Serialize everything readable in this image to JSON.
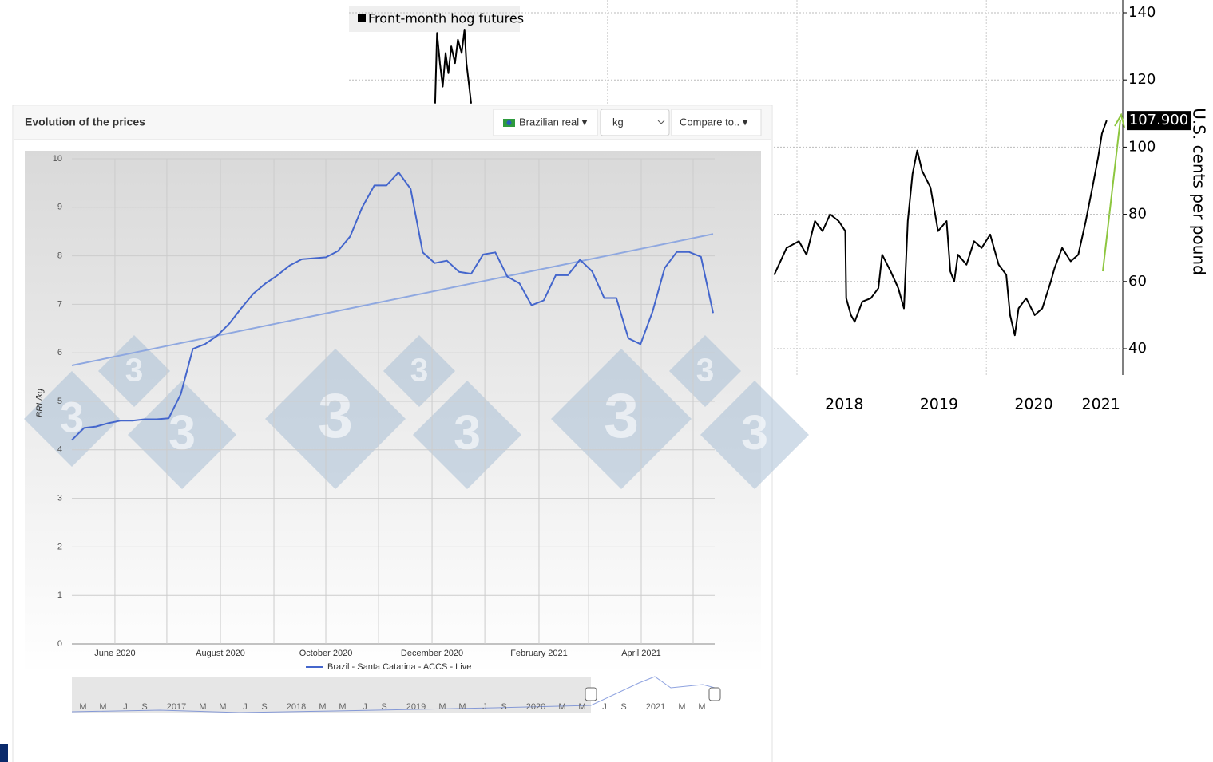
{
  "chart_data": [
    {
      "type": "line",
      "legend": "Front-month hog futures",
      "y_label": "U.S. cents per pound",
      "last_label": "107.900",
      "xlim": [
        2013.27,
        2021.44
      ],
      "ylim": [
        32.16,
        143.8
      ],
      "yticks": [
        40,
        60,
        80,
        100,
        120,
        140
      ],
      "xticks": [
        {
          "value": 2018.5,
          "label": "2018"
        },
        {
          "value": 2019.5,
          "label": "2019"
        },
        {
          "value": 2020.5,
          "label": "2020"
        },
        {
          "value": 2021.21,
          "label": "2021"
        }
      ],
      "xgrid": [
        2016,
        2018,
        2020
      ],
      "grid": true,
      "series": [
        {
          "name": "Front-month hog futures",
          "color": "#000000",
          "x": [
            2014.18,
            2014.2,
            2014.23,
            2014.26,
            2014.29,
            2014.32,
            2014.35,
            2014.39,
            2014.42,
            2014.46,
            2014.49,
            2014.51,
            2014.54,
            2014.56,
            2016.0,
            2017.76,
            2017.89,
            2018.02,
            2018.1,
            2018.19,
            2018.27,
            2018.35,
            2018.44,
            2018.51,
            2018.52,
            2018.57,
            2018.61,
            2018.69,
            2018.78,
            2018.86,
            2018.9,
            2018.99,
            2019.07,
            2019.13,
            2019.17,
            2019.22,
            2019.27,
            2019.32,
            2019.41,
            2019.49,
            2019.58,
            2019.62,
            2019.66,
            2019.7,
            2019.79,
            2019.87,
            2019.95,
            2020.04,
            2020.13,
            2020.21,
            2020.25,
            2020.3,
            2020.34,
            2020.42,
            2020.51,
            2020.59,
            2020.68,
            2020.72,
            2020.8,
            2020.89,
            2020.97,
            2021.05,
            2021.12,
            2021.18,
            2021.22,
            2021.27
          ],
          "values": [
            113,
            134,
            125,
            118,
            128,
            122,
            130,
            125,
            132,
            128,
            135,
            125,
            118,
            113,
            null,
            62,
            70,
            72,
            68,
            78,
            75,
            80,
            78,
            75,
            55,
            50,
            48,
            54,
            55,
            58,
            68,
            63,
            58,
            52,
            78,
            92,
            99,
            93,
            88,
            75,
            78,
            63,
            60,
            68,
            65,
            72,
            70,
            74,
            65,
            62,
            50,
            44,
            52,
            55,
            50,
            52,
            60,
            64,
            70,
            66,
            68,
            78,
            88,
            97,
            104,
            107.9
          ]
        }
      ]
    },
    {
      "type": "line",
      "y_label": "BRL/kg",
      "xlim": [
        0,
        53
      ],
      "ylim": [
        0,
        10
      ],
      "yticks": [
        0,
        1,
        2,
        3,
        4,
        5,
        6,
        7,
        8,
        9,
        10
      ],
      "xticks": [
        {
          "value": 3.56,
          "label": "June 2020"
        },
        {
          "value": 12.28,
          "label": "August 2020"
        },
        {
          "value": 20.99,
          "label": "October 2020"
        },
        {
          "value": 29.77,
          "label": "December 2020"
        },
        {
          "value": 38.61,
          "label": "February 2021"
        },
        {
          "value": 47.06,
          "label": "April 2021"
        }
      ],
      "xgrid": [
        3.56,
        7.85,
        12.28,
        16.7,
        20.99,
        25.35,
        29.77,
        34.13,
        38.61,
        42.71,
        47.06,
        51.35
      ],
      "grid": true,
      "trend": [
        5.74,
        8.45
      ],
      "trend_color": "#8fa8e0",
      "series": [
        {
          "name": "Brazil - Santa Catarina - ACCS - Live",
          "color": "#4466cc",
          "values": [
            4.2,
            4.45,
            4.48,
            4.55,
            4.6,
            4.6,
            4.63,
            4.63,
            4.65,
            5.15,
            6.08,
            6.18,
            6.35,
            6.6,
            6.92,
            7.22,
            7.43,
            7.6,
            7.8,
            7.93,
            7.95,
            7.97,
            8.1,
            8.4,
            9.0,
            9.45,
            9.45,
            9.72,
            9.38,
            8.07,
            7.85,
            7.9,
            7.67,
            7.63,
            8.03,
            8.07,
            7.57,
            7.43,
            6.98,
            7.08,
            7.6,
            7.6,
            7.92,
            7.68,
            7.13,
            7.13,
            6.3,
            6.18,
            6.85,
            7.75,
            8.08,
            8.08,
            7.98,
            6.82
          ]
        }
      ]
    }
  ],
  "panel": {
    "title": "Evolution of the prices",
    "currency": "Brazilian real ▾",
    "unit": "kg",
    "compare": "Compare to.. ▾",
    "watermark": "3",
    "navigator": [
      "M",
      "M",
      "J",
      "S",
      "2017",
      "M",
      "M",
      "J",
      "S",
      "2018",
      "M",
      "M",
      "J",
      "S",
      "2019",
      "M",
      "M",
      "J",
      "S",
      "2020",
      "M",
      "M",
      "J",
      "S",
      "2021",
      "M",
      "M"
    ]
  }
}
